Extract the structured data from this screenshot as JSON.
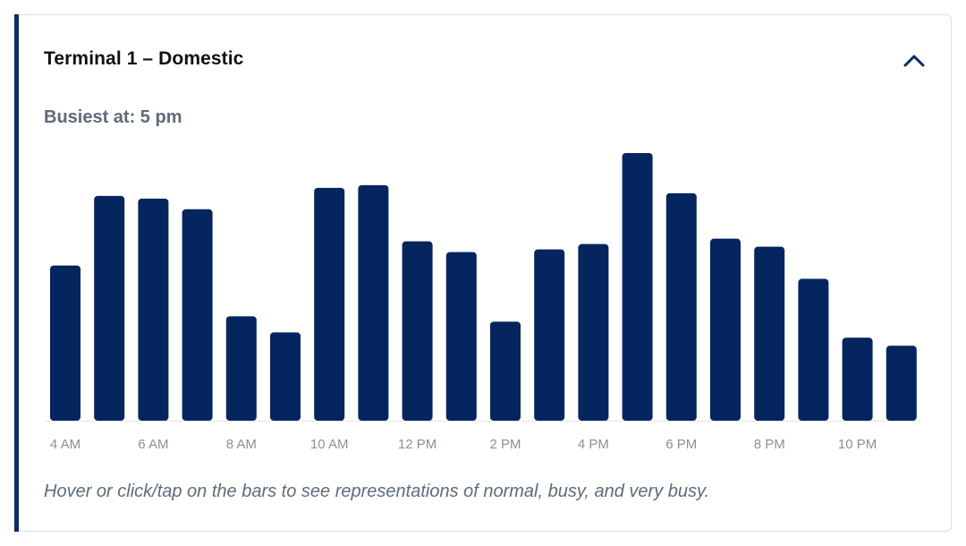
{
  "panel": {
    "title": "Terminal 1 – Domestic",
    "toggle_icon": "chevron-up-icon",
    "busiest_text": "Busiest at: 5 pm",
    "footnote": "Hover or click/tap on the bars to see representations of normal, busy, and very busy."
  },
  "colors": {
    "bar": "#05255f",
    "accent": "#0a2a6b",
    "axis_label": "#8a9099",
    "baseline": "#e3e5e8"
  },
  "chart_data": {
    "type": "bar",
    "title": "",
    "xlabel": "",
    "ylabel": "",
    "ylim": [
      0,
      100
    ],
    "grid": false,
    "categories": [
      "4 AM",
      "5 AM",
      "6 AM",
      "7 AM",
      "8 AM",
      "9 AM",
      "10 AM",
      "11 AM",
      "12 PM",
      "1 PM",
      "2 PM",
      "3 PM",
      "4 PM",
      "5 PM",
      "6 PM",
      "7 PM",
      "8 PM",
      "9 PM",
      "10 PM",
      "11 PM"
    ],
    "tick_labels": [
      "4 AM",
      "6 AM",
      "8 AM",
      "10 AM",
      "12 PM",
      "2 PM",
      "4 PM",
      "6 PM",
      "8 PM",
      "10 PM"
    ],
    "values": [
      58,
      84,
      83,
      79,
      39,
      33,
      87,
      88,
      67,
      63,
      37,
      64,
      66,
      100,
      85,
      68,
      65,
      53,
      31,
      28
    ]
  }
}
